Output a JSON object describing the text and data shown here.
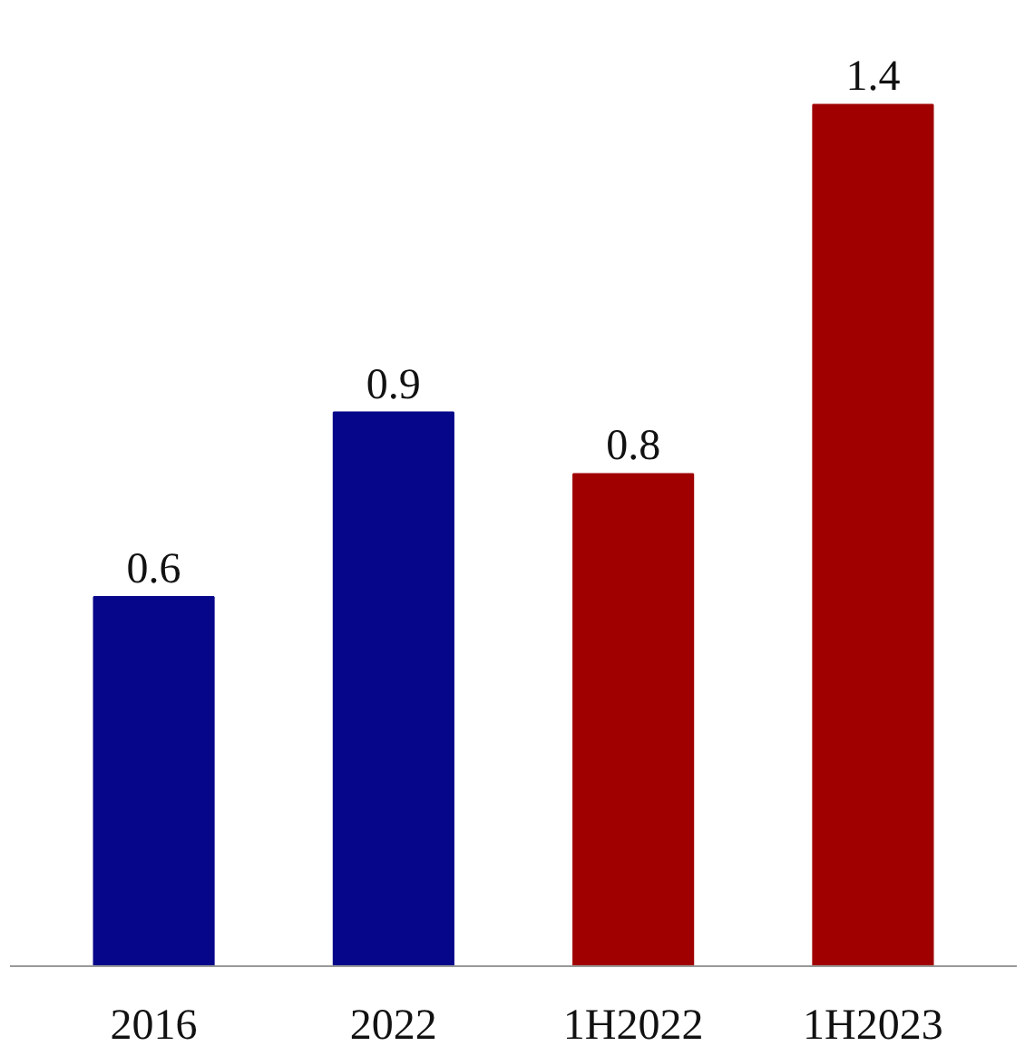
{
  "chart_data": {
    "type": "bar",
    "categories": [
      "2016",
      "2022",
      "1H2022",
      "1H2023"
    ],
    "values": [
      0.6,
      0.9,
      0.8,
      1.4
    ],
    "colors": [
      "#06068a",
      "#06068a",
      "#a00000",
      "#a00000"
    ],
    "data_labels": true
  }
}
